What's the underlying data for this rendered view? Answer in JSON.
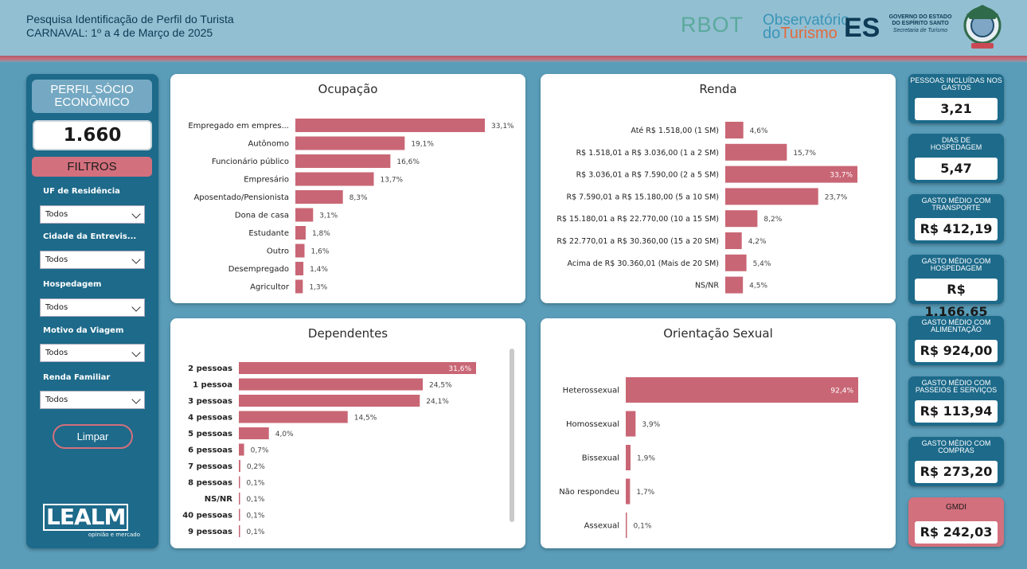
{
  "header": {
    "title_line1": "Pesquisa Identificação de Perfil do Turista",
    "title_line2": "CARNAVAL: 1º a 4 de Março de 2025",
    "logo_rbot": "RBOT",
    "logo_obs_line1": "Observatório",
    "logo_obs_line2a": "do",
    "logo_obs_line2b": "Turismo",
    "logo_obs_es": "ES",
    "gov_line1": "GOVERNO DO ESTADO",
    "gov_line2": "DO ESPÍRITO SANTO",
    "gov_line3": "Secretaria de Turismo"
  },
  "sidebar": {
    "perfil_label": "PERFIL SÓCIO ECONÔMICO",
    "count": "1.660",
    "filtros_label": "FILTROS",
    "filters": [
      {
        "label": "UF de Residência",
        "value": "Todos"
      },
      {
        "label": "Cidade da Entrevis...",
        "value": "Todos"
      },
      {
        "label": "Hospedagem",
        "value": "Todos"
      },
      {
        "label": "Motivo da Viagem",
        "value": "Todos"
      },
      {
        "label": "Renda Familiar",
        "value": "Todos"
      }
    ],
    "limpar_label": "Limpar",
    "leal_logo": "LEALM",
    "leal_sub": "opinião e mercado"
  },
  "kpis": [
    {
      "label": "PESSOAS INCLUÍDAS NOS GASTOS",
      "value": "3,21"
    },
    {
      "label": "DIAS DE HOSPEDAGEM",
      "value": "5,47"
    },
    {
      "label": "GASTO MÉDIO COM TRANSPORTE",
      "value": "R$ 412,19"
    },
    {
      "label": "GASTO MÉDIO COM HOSPEDAGEM",
      "value": "R$ 1.166,65"
    },
    {
      "label": "GASTO MÉDIO COM ALIMENTAÇÃO",
      "value": "R$ 924,00"
    },
    {
      "label": "GASTO MÉDIO COM PASSEIOS E SERVIÇOS",
      "value": "R$ 113,94"
    },
    {
      "label": "GASTO MÉDIO COM COMPRAS",
      "value": "R$ 273,20"
    },
    {
      "label": "GMDI",
      "value": "R$ 242,03"
    }
  ],
  "colors": {
    "bar": "#c96675",
    "panel": "#1d6a8a",
    "accent": "#d3707d"
  },
  "chart_data": [
    {
      "type": "bar",
      "orientation": "horizontal",
      "title": "Ocupação",
      "categories": [
        "Empregado em empres...",
        "Autônomo",
        "Funcionário público",
        "Empresário",
        "Aposentado/Pensionista",
        "Dona de casa",
        "Estudante",
        "Outro",
        "Desempregado",
        "Agricultor"
      ],
      "values": [
        33.1,
        19.1,
        16.6,
        13.7,
        8.3,
        3.1,
        1.8,
        1.6,
        1.4,
        1.3
      ],
      "labels": [
        "33,1%",
        "19,1%",
        "16,6%",
        "13,7%",
        "8,3%",
        "3,1%",
        "1,8%",
        "1,6%",
        "1,4%",
        "1,3%"
      ]
    },
    {
      "type": "bar",
      "orientation": "horizontal",
      "title": "Renda",
      "categories": [
        "Até R$ 1.518,00 (1 SM)",
        "R$ 1.518,01 a R$ 3.036,00 (1 a 2 SM)",
        "R$ 3.036,01 a R$ 7.590,00 (2 a 5 SM)",
        "R$ 7.590,01 a R$ 15.180,00 (5 a 10 SM)",
        "R$ 15.180,01 a R$ 22.770,00 (10 a 15 SM)",
        "R$ 22.770,01 a R$ 30.360,00 (15 a 20 SM)",
        "Acima de R$ 30.360,01 (Mais de 20 SM)",
        "NS/NR"
      ],
      "values": [
        4.6,
        15.7,
        33.7,
        23.7,
        8.2,
        4.2,
        5.4,
        4.5
      ],
      "labels": [
        "4,6%",
        "15,7%",
        "33,7%",
        "23,7%",
        "8,2%",
        "4,2%",
        "5,4%",
        "4,5%"
      ]
    },
    {
      "type": "bar",
      "orientation": "horizontal",
      "title": "Dependentes",
      "categories": [
        "2 pessoas",
        "1 pessoa",
        "3 pessoas",
        "4 pessoas",
        "5 pessoas",
        "6 pessoas",
        "7 pessoas",
        "8 pessoas",
        "NS/NR",
        "40 pessoas",
        "9 pessoas"
      ],
      "values": [
        31.6,
        24.5,
        24.1,
        14.5,
        4.0,
        0.7,
        0.2,
        0.1,
        0.1,
        0.1,
        0.1
      ],
      "labels": [
        "31,6%",
        "24,5%",
        "24,1%",
        "14,5%",
        "4,0%",
        "0,7%",
        "0,2%",
        "0,1%",
        "0,1%",
        "0,1%",
        "0,1%"
      ]
    },
    {
      "type": "bar",
      "orientation": "horizontal",
      "title": "Orientação Sexual",
      "categories": [
        "Heterossexual",
        "Homossexual",
        "Bissexual",
        "Não respondeu",
        "Assexual"
      ],
      "values": [
        92.4,
        3.9,
        1.9,
        1.7,
        0.1
      ],
      "labels": [
        "92,4%",
        "3,9%",
        "1,9%",
        "1,7%",
        "0,1%"
      ]
    }
  ]
}
